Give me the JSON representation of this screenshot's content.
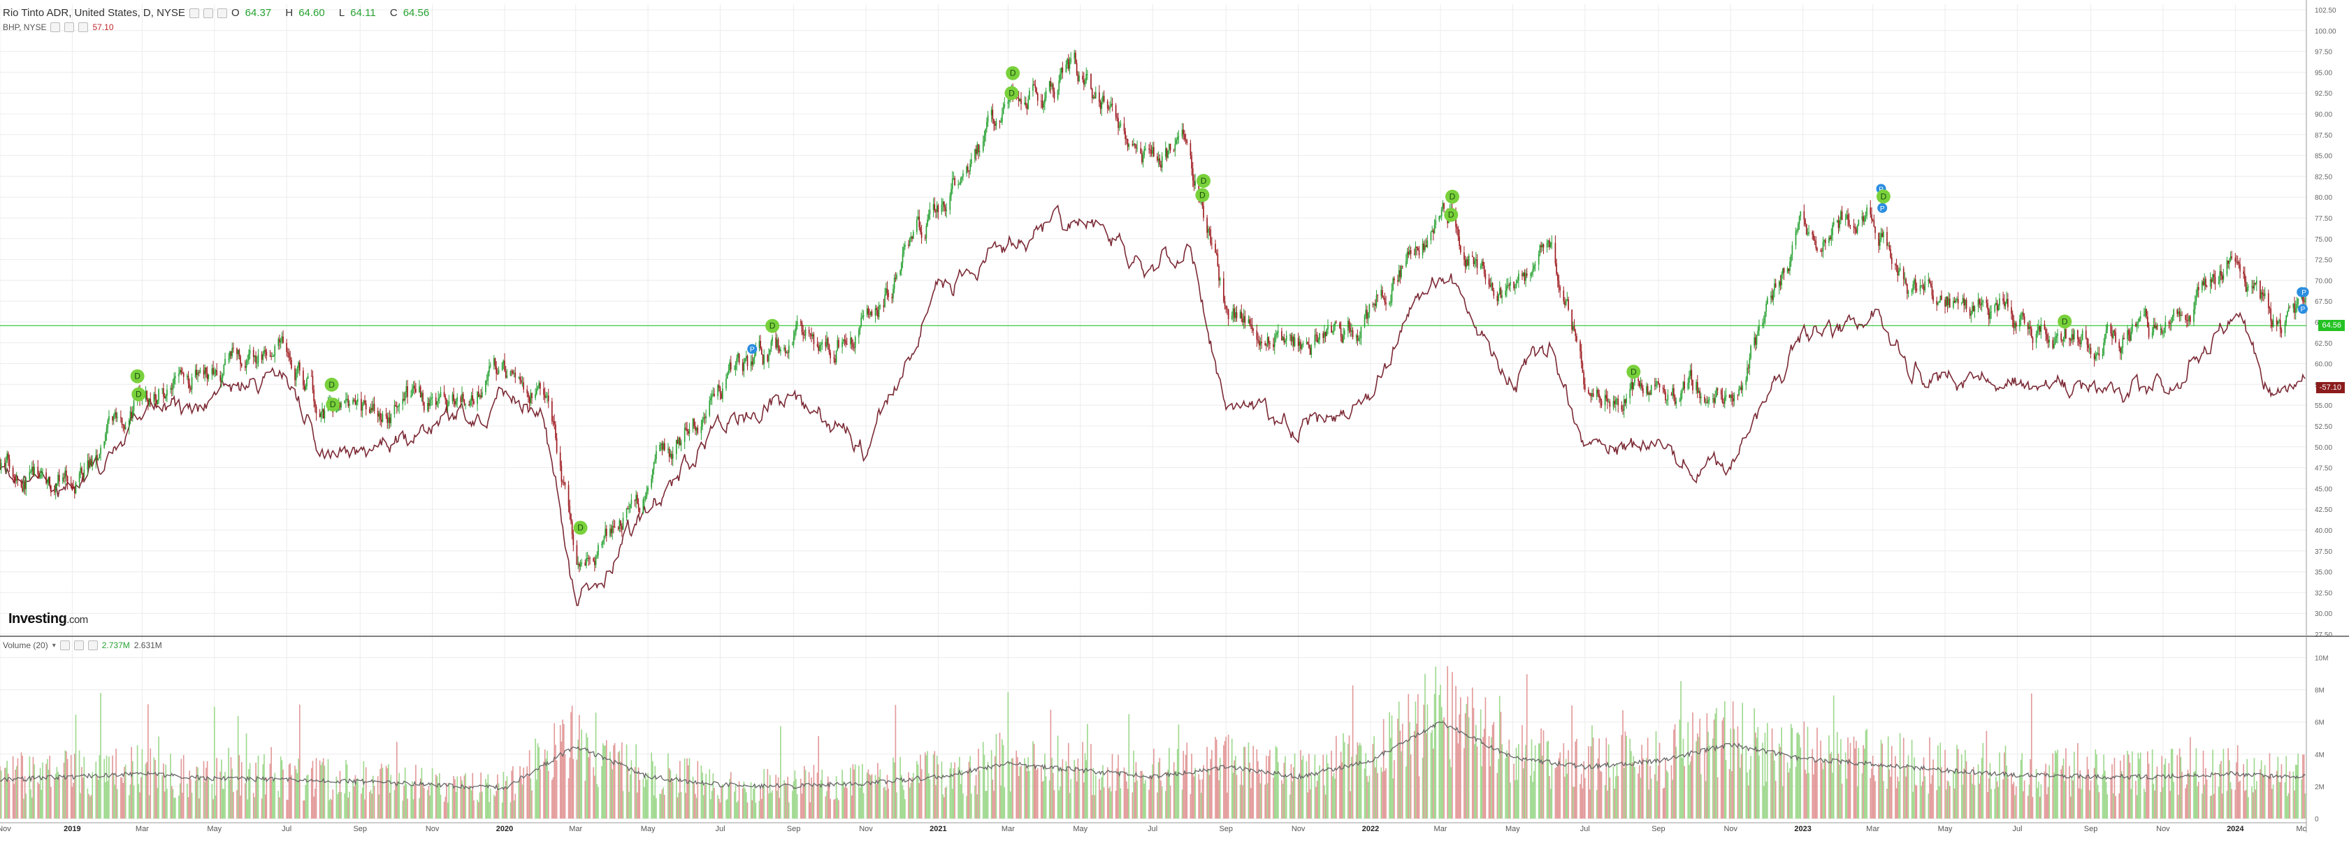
{
  "header": {
    "symbol_title": "Rio Tinto ADR, United States, D, NYSE",
    "open_label": "O",
    "open": "64.37",
    "high_label": "H",
    "high": "64.60",
    "low_label": "L",
    "low": "64.11",
    "close_label": "C",
    "close": "64.56",
    "compare_symbol": "BHP, NYSE",
    "compare_value": "57.10",
    "volume_title": "Volume (20)",
    "volume_value": "2.737M",
    "volume_ma": "2.631M"
  },
  "logo": {
    "brand": "Investing",
    "suffix": ".com"
  },
  "colors": {
    "up": "#26a131",
    "down": "#9d1a1f",
    "bhp_line": "#7b2a35",
    "price_line": "#3ec93e",
    "grid": "#ececec",
    "vol_up": "#9fd98f",
    "vol_down": "#e39a9a",
    "vol_ma": "#666666",
    "div_badge": "#79d13b",
    "split_badge": "#2b8de0",
    "last_price_bg": "#23c223",
    "bhp_badge_bg": "#8b1c1c"
  },
  "chart_data": [
    {
      "type": "line",
      "title": "Rio Tinto ADR, United States, D, NYSE",
      "series": [
        {
          "name": "Rio Tinto ADR",
          "style": "candlestick",
          "x": [
            "2018-11",
            "2019-01",
            "2019-03",
            "2019-05",
            "2019-07",
            "2019-08",
            "2019-09",
            "2019-11",
            "2020-01",
            "2020-02",
            "2020-03",
            "2020-05",
            "2020-07",
            "2020-09",
            "2020-11",
            "2021-01",
            "2021-03",
            "2021-05",
            "2021-07",
            "2021-08",
            "2021-09",
            "2021-11",
            "2022-01",
            "2022-03",
            "2022-05",
            "2022-06",
            "2022-07",
            "2022-09",
            "2022-11",
            "2023-01",
            "2023-03",
            "2023-04",
            "2023-05",
            "2023-07",
            "2023-09",
            "2023-11",
            "2024-01",
            "2024-02"
          ],
          "values": [
            48.5,
            45.0,
            55.5,
            61.0,
            62.0,
            54.0,
            53.0,
            56.0,
            59.0,
            58.0,
            36.0,
            45.0,
            58.0,
            62.0,
            64.0,
            79.0,
            91.0,
            94.0,
            85.0,
            86.0,
            66.0,
            62.0,
            66.0,
            78.0,
            68.0,
            75.0,
            59.0,
            57.0,
            56.0,
            75.0,
            79.0,
            70.0,
            68.0,
            65.0,
            63.0,
            64.0,
            73.0,
            64.56
          ]
        },
        {
          "name": "BHP, NYSE",
          "style": "line",
          "x": [
            "2018-11",
            "2019-01",
            "2019-03",
            "2019-05",
            "2019-07",
            "2019-08",
            "2019-09",
            "2019-11",
            "2020-01",
            "2020-02",
            "2020-03",
            "2020-05",
            "2020-07",
            "2020-09",
            "2020-11",
            "2021-01",
            "2021-03",
            "2021-05",
            "2021-07",
            "2021-08",
            "2021-09",
            "2021-11",
            "2022-01",
            "2022-03",
            "2022-05",
            "2022-06",
            "2022-07",
            "2022-09",
            "2022-11",
            "2023-01",
            "2023-03",
            "2023-04",
            "2023-05",
            "2023-07",
            "2023-09",
            "2023-11",
            "2024-01",
            "2024-02"
          ],
          "values": [
            46.5,
            44.0,
            53.0,
            56.0,
            59.0,
            48.0,
            50.0,
            52.0,
            56.0,
            54.0,
            31.0,
            42.0,
            54.0,
            55.0,
            50.0,
            69.0,
            74.0,
            78.0,
            72.0,
            74.0,
            55.0,
            52.0,
            56.0,
            72.0,
            58.0,
            62.0,
            50.0,
            49.0,
            48.0,
            63.0,
            66.0,
            60.0,
            58.0,
            58.0,
            56.0,
            57.0,
            66.0,
            57.1
          ]
        }
      ],
      "ylim": [
        27.5,
        102.5
      ],
      "yticks": [
        "102.50",
        "100.00",
        "97.50",
        "95.00",
        "92.50",
        "90.00",
        "87.50",
        "85.00",
        "82.50",
        "80.00",
        "77.50",
        "75.00",
        "72.50",
        "70.00",
        "67.50",
        "65.00",
        "62.50",
        "60.00",
        "57.50",
        "55.00",
        "52.50",
        "50.00",
        "47.50",
        "45.00",
        "42.50",
        "40.00",
        "37.50",
        "35.00",
        "32.50",
        "30.00",
        "27.50"
      ],
      "last_price": 64.56,
      "last_price_label": "64.56",
      "bhp_last_label": "-57.10",
      "events": [
        {
          "kind": "dividend",
          "label": "D",
          "date": "2019-02-25"
        },
        {
          "kind": "dividend",
          "label": "D",
          "date": "2019-02-26"
        },
        {
          "kind": "dividend",
          "label": "D",
          "date": "2019-08-08"
        },
        {
          "kind": "dividend",
          "label": "D",
          "date": "2019-08-09"
        },
        {
          "kind": "dividend",
          "label": "D",
          "date": "2020-03-05"
        },
        {
          "kind": "split",
          "label": "P",
          "date": "2020-07-28"
        },
        {
          "kind": "dividend",
          "label": "D",
          "date": "2020-08-14"
        },
        {
          "kind": "dividend",
          "label": "D",
          "date": "2021-03-04"
        },
        {
          "kind": "dividend",
          "label": "D",
          "date": "2021-03-05"
        },
        {
          "kind": "dividend",
          "label": "D",
          "date": "2021-08-12"
        },
        {
          "kind": "dividend",
          "label": "D",
          "date": "2021-08-13"
        },
        {
          "kind": "dividend",
          "label": "D",
          "date": "2022-03-10"
        },
        {
          "kind": "dividend",
          "label": "D",
          "date": "2022-03-11"
        },
        {
          "kind": "dividend",
          "label": "D",
          "date": "2022-08-11"
        },
        {
          "kind": "split",
          "label": "P",
          "date": "2023-03-08"
        },
        {
          "kind": "split",
          "label": "P",
          "date": "2023-03-09"
        },
        {
          "kind": "dividend",
          "label": "D",
          "date": "2023-03-10"
        },
        {
          "kind": "dividend",
          "label": "D",
          "date": "2023-08-10"
        },
        {
          "kind": "split",
          "label": "P",
          "date": "2024-02-26"
        },
        {
          "kind": "split",
          "label": "P",
          "date": "2024-02-27"
        },
        {
          "kind": "split",
          "label": "P",
          "date": "2024-02-28"
        }
      ],
      "grid": true
    },
    {
      "type": "bar",
      "title": "Volume (20)",
      "series": [
        {
          "name": "Volume",
          "style": "bars",
          "x": [
            "2018-11",
            "2019-01",
            "2019-03",
            "2019-05",
            "2019-07",
            "2019-09",
            "2019-11",
            "2020-01",
            "2020-03",
            "2020-05",
            "2020-07",
            "2020-09",
            "2020-11",
            "2021-01",
            "2021-03",
            "2021-05",
            "2021-07",
            "2021-09",
            "2021-11",
            "2022-01",
            "2022-03",
            "2022-05",
            "2022-07",
            "2022-09",
            "2022-11",
            "2023-01",
            "2023-03",
            "2023-05",
            "2023-07",
            "2023-09",
            "2023-11",
            "2024-01",
            "2024-02"
          ],
          "values": [
            2.6,
            2.8,
            3.0,
            2.6,
            2.5,
            2.4,
            2.2,
            2.0,
            4.8,
            2.8,
            2.2,
            2.1,
            2.3,
            2.8,
            3.6,
            3.2,
            2.8,
            3.4,
            2.8,
            3.8,
            6.4,
            4.0,
            3.4,
            3.8,
            4.8,
            3.9,
            3.6,
            3.2,
            2.9,
            2.8,
            2.8,
            3.0,
            2.7
          ]
        },
        {
          "name": "MA(20)",
          "style": "line",
          "x": [
            "2018-11",
            "2019-01",
            "2019-03",
            "2019-05",
            "2019-07",
            "2019-09",
            "2019-11",
            "2020-01",
            "2020-03",
            "2020-05",
            "2020-07",
            "2020-09",
            "2020-11",
            "2021-01",
            "2021-03",
            "2021-05",
            "2021-07",
            "2021-09",
            "2021-11",
            "2022-01",
            "2022-03",
            "2022-05",
            "2022-07",
            "2022-09",
            "2022-11",
            "2023-01",
            "2023-03",
            "2023-05",
            "2023-07",
            "2023-09",
            "2023-11",
            "2024-01",
            "2024-02"
          ],
          "values": [
            2.4,
            2.6,
            2.8,
            2.5,
            2.4,
            2.3,
            2.1,
            1.9,
            4.5,
            2.6,
            2.1,
            2.0,
            2.2,
            2.6,
            3.4,
            3.0,
            2.6,
            3.2,
            2.6,
            3.6,
            6.0,
            3.8,
            3.2,
            3.6,
            4.6,
            3.7,
            3.4,
            3.0,
            2.7,
            2.6,
            2.6,
            2.8,
            2.63
          ]
        }
      ],
      "ylim": [
        0,
        10.5
      ],
      "yticks": [
        "10M",
        "8M",
        "6M",
        "4M",
        "2M",
        "0"
      ],
      "units": "M"
    }
  ],
  "x_axis": {
    "labels": [
      "Nov",
      "2019",
      "Mar",
      "May",
      "Jul",
      "Sep",
      "Nov",
      "2020",
      "Mar",
      "May",
      "Jul",
      "Sep",
      "Nov",
      "2021",
      "Mar",
      "May",
      "Jul",
      "Sep",
      "Nov",
      "2022",
      "Mar",
      "May",
      "Jul",
      "Sep",
      "Nov",
      "2023",
      "Mar",
      "May",
      "Jul",
      "Sep",
      "Nov",
      "2024",
      "Mc"
    ],
    "year_labels": [
      "2019",
      "2020",
      "2021",
      "2022",
      "2023",
      "2024"
    ]
  }
}
